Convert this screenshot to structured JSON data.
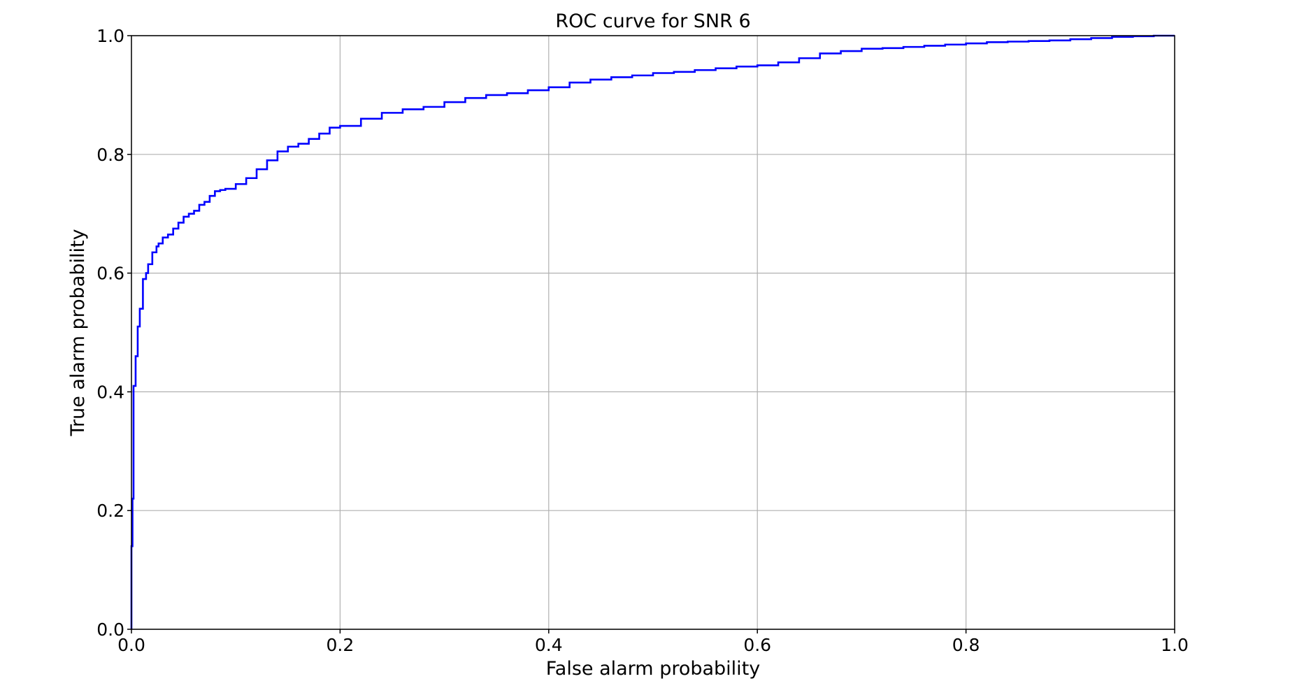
{
  "chart_data": {
    "type": "line",
    "title": "ROC curve for SNR 6",
    "xlabel": "False alarm probability",
    "ylabel": "True alarm probability",
    "xlim": [
      0.0,
      1.0
    ],
    "ylim": [
      0.0,
      1.0
    ],
    "xticks": [
      "0.0",
      "0.2",
      "0.4",
      "0.6",
      "0.8",
      "1.0"
    ],
    "yticks": [
      "0.0",
      "0.2",
      "0.4",
      "0.6",
      "0.8",
      "1.0"
    ],
    "grid": true,
    "legend": "none",
    "series": [
      {
        "color": "#0000ff",
        "x": [
          0.0,
          0.0,
          0.001,
          0.001,
          0.002,
          0.002,
          0.004,
          0.004,
          0.006,
          0.006,
          0.008,
          0.008,
          0.011,
          0.011,
          0.014,
          0.016,
          0.02,
          0.024,
          0.026,
          0.03,
          0.035,
          0.04,
          0.045,
          0.05,
          0.055,
          0.06,
          0.065,
          0.07,
          0.075,
          0.08,
          0.085,
          0.09,
          0.1,
          0.11,
          0.12,
          0.13,
          0.14,
          0.15,
          0.16,
          0.17,
          0.18,
          0.19,
          0.2,
          0.22,
          0.24,
          0.26,
          0.28,
          0.3,
          0.32,
          0.34,
          0.36,
          0.38,
          0.4,
          0.42,
          0.44,
          0.46,
          0.48,
          0.5,
          0.52,
          0.54,
          0.56,
          0.58,
          0.6,
          0.62,
          0.64,
          0.66,
          0.68,
          0.7,
          0.72,
          0.74,
          0.76,
          0.78,
          0.8,
          0.82,
          0.84,
          0.86,
          0.88,
          0.9,
          0.92,
          0.94,
          0.96,
          0.98,
          1.0
        ],
        "y": [
          0.0,
          0.14,
          0.14,
          0.22,
          0.22,
          0.41,
          0.41,
          0.46,
          0.46,
          0.51,
          0.51,
          0.54,
          0.54,
          0.57,
          0.59,
          0.6,
          0.615,
          0.635,
          0.645,
          0.65,
          0.66,
          0.665,
          0.675,
          0.685,
          0.695,
          0.7,
          0.705,
          0.715,
          0.72,
          0.73,
          0.738,
          0.74,
          0.742,
          0.75,
          0.76,
          0.775,
          0.79,
          0.805,
          0.813,
          0.818,
          0.826,
          0.835,
          0.845,
          0.848,
          0.86,
          0.87,
          0.876,
          0.88,
          0.888,
          0.895,
          0.9,
          0.903,
          0.908,
          0.913,
          0.921,
          0.926,
          0.93,
          0.933,
          0.937,
          0.939,
          0.942,
          0.945,
          0.948,
          0.95,
          0.955,
          0.962,
          0.97,
          0.974,
          0.978,
          0.979,
          0.981,
          0.983,
          0.985,
          0.987,
          0.989,
          0.99,
          0.991,
          0.992,
          0.994,
          0.996,
          0.998,
          0.999,
          1.0
        ]
      }
    ]
  }
}
